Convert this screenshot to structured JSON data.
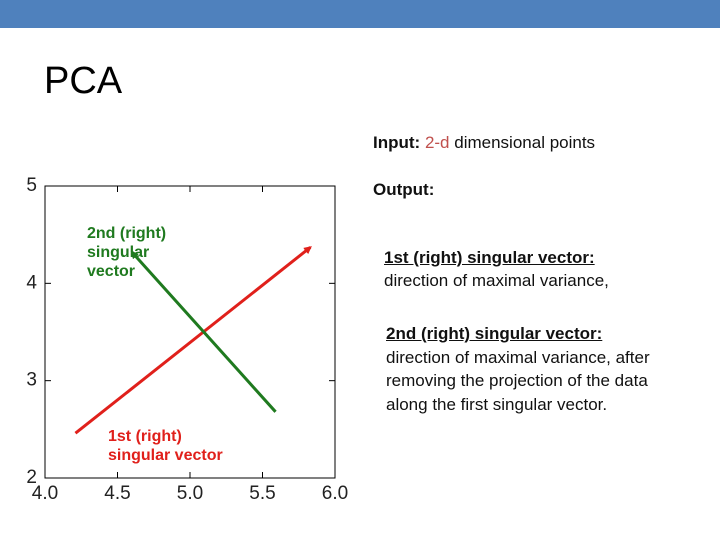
{
  "slide": {
    "title": "PCA",
    "input": {
      "label": "Input:",
      "highlight": "2-d",
      "text": "dimensional points"
    },
    "output": {
      "label": "Output:"
    },
    "items": [
      {
        "heading": "1st (right) singular vector:",
        "text": "direction of maximal variance,"
      },
      {
        "heading": "2nd (right) singular vector:",
        "text": "direction of maximal variance, after removing the projection of the data along the first singular vector."
      }
    ]
  },
  "chart_data": {
    "type": "line",
    "series": [
      {
        "name": "1st (right) singular vector",
        "color": "#e0201b",
        "x": [
          4.21,
          5.83
        ],
        "values": [
          2.46,
          4.37
        ]
      },
      {
        "name": "2nd (right) singular vector",
        "color": "#1f7a1f",
        "x": [
          5.59,
          4.6
        ],
        "values": [
          2.68,
          4.32
        ]
      }
    ],
    "xlim": [
      4,
      6
    ],
    "ylim": [
      2,
      5
    ],
    "xticks": [
      {
        "value": 4,
        "label": "4.0"
      },
      {
        "value": 4.5,
        "label": "4.5"
      },
      {
        "value": 5,
        "label": "5.0"
      },
      {
        "value": 5.5,
        "label": "5.5"
      },
      {
        "value": 6,
        "label": "6.0"
      }
    ],
    "yticks": [
      2,
      3,
      4,
      5
    ]
  }
}
